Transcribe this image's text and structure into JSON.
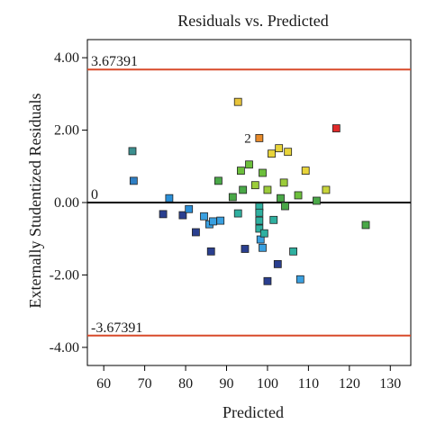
{
  "chart_data": {
    "type": "scatter",
    "title": "Residuals vs. Predicted",
    "xlabel": "Predicted",
    "ylabel": "Externally Studentized Residuals",
    "xlim": [
      56,
      135
    ],
    "ylim": [
      -4.5,
      4.5
    ],
    "xticks": [
      "60",
      "70",
      "80",
      "90",
      "100",
      "110",
      "120",
      "130"
    ],
    "yticks": [
      "-4.00",
      "-2.00",
      "0.00",
      "2.00",
      "4.00"
    ],
    "grid": false,
    "legend": "none",
    "reference_lines": [
      {
        "y": 3.67391,
        "label": "3.67391",
        "color": "#d84a2a"
      },
      {
        "y": 0,
        "label": "0",
        "color": "#000000"
      },
      {
        "y": -3.67391,
        "label": "-3.67391",
        "color": "#d84a2a"
      }
    ],
    "points": [
      {
        "x": 67.0,
        "y": 1.42,
        "color": "#3b8f8f"
      },
      {
        "x": 67.3,
        "y": 0.6,
        "color": "#2f7fc4"
      },
      {
        "x": 74.5,
        "y": -0.32,
        "color": "#2a3f8f"
      },
      {
        "x": 76.0,
        "y": 0.12,
        "color": "#2a8fd8"
      },
      {
        "x": 79.3,
        "y": -0.35,
        "color": "#2a3f8f"
      },
      {
        "x": 80.8,
        "y": -0.18,
        "color": "#2a8fd8"
      },
      {
        "x": 82.5,
        "y": -0.82,
        "color": "#2a3f8f"
      },
      {
        "x": 84.5,
        "y": -0.38,
        "color": "#3aa0e0"
      },
      {
        "x": 85.8,
        "y": -0.6,
        "color": "#3aa0e0"
      },
      {
        "x": 86.2,
        "y": -1.35,
        "color": "#2a3f8f"
      },
      {
        "x": 86.7,
        "y": -0.52,
        "color": "#3aa0e0"
      },
      {
        "x": 88.5,
        "y": -0.5,
        "color": "#3aa0e0"
      },
      {
        "x": 88.0,
        "y": 0.6,
        "color": "#4aa848"
      },
      {
        "x": 91.5,
        "y": 0.15,
        "color": "#4aa848"
      },
      {
        "x": 92.8,
        "y": 2.78,
        "color": "#e8c43a"
      },
      {
        "x": 92.8,
        "y": -0.3,
        "color": "#2fb0a0"
      },
      {
        "x": 93.5,
        "y": 0.88,
        "color": "#6cbf3c"
      },
      {
        "x": 94.0,
        "y": 0.35,
        "color": "#4aa848"
      },
      {
        "x": 94.5,
        "y": -1.28,
        "color": "#2a3f8f"
      },
      {
        "x": 95.5,
        "y": 1.05,
        "color": "#6cbf3c"
      },
      {
        "x": 97.0,
        "y": 0.48,
        "color": "#9ccc3a"
      },
      {
        "x": 98.0,
        "y": 1.78,
        "color": "#e88a2a"
      },
      {
        "x": 98.0,
        "y": -0.12,
        "color": "#2fb0a0"
      },
      {
        "x": 98.0,
        "y": -0.28,
        "color": "#2fb0a0"
      },
      {
        "x": 98.0,
        "y": -0.5,
        "color": "#2fb0a0"
      },
      {
        "x": 98.0,
        "y": -0.72,
        "color": "#2fb0a0"
      },
      {
        "x": 98.3,
        "y": -1.02,
        "color": "#3aa0e0"
      },
      {
        "x": 98.8,
        "y": 0.82,
        "color": "#6cbf3c"
      },
      {
        "x": 98.8,
        "y": -1.25,
        "color": "#3aa0e0"
      },
      {
        "x": 99.2,
        "y": -0.85,
        "color": "#2fb0a0"
      },
      {
        "x": 100.0,
        "y": -2.17,
        "color": "#2a3f8f"
      },
      {
        "x": 100.0,
        "y": 0.35,
        "color": "#9ccc3a"
      },
      {
        "x": 101.0,
        "y": 1.35,
        "color": "#e8d43a"
      },
      {
        "x": 101.5,
        "y": -0.48,
        "color": "#2fb0a0"
      },
      {
        "x": 102.5,
        "y": -1.7,
        "color": "#2a3f8f"
      },
      {
        "x": 102.8,
        "y": 1.5,
        "color": "#e8d43a"
      },
      {
        "x": 103.2,
        "y": 0.12,
        "color": "#4aa848"
      },
      {
        "x": 104.0,
        "y": 0.55,
        "color": "#9ccc3a"
      },
      {
        "x": 104.3,
        "y": -0.1,
        "color": "#4aa848"
      },
      {
        "x": 105.0,
        "y": 1.4,
        "color": "#e8d43a"
      },
      {
        "x": 106.3,
        "y": -1.35,
        "color": "#2fb0a0"
      },
      {
        "x": 107.5,
        "y": 0.2,
        "color": "#6cbf3c"
      },
      {
        "x": 108.0,
        "y": -2.12,
        "color": "#3aa0e0"
      },
      {
        "x": 109.3,
        "y": 0.88,
        "color": "#e8d43a"
      },
      {
        "x": 112.0,
        "y": 0.05,
        "color": "#4aa848"
      },
      {
        "x": 114.3,
        "y": 0.35,
        "color": "#c8d43a"
      },
      {
        "x": 116.8,
        "y": 2.05,
        "color": "#e02a2a"
      },
      {
        "x": 124.0,
        "y": -0.62,
        "color": "#4aa848"
      }
    ],
    "annotations": [
      {
        "text": "2",
        "x": 96.0,
        "y": 1.78
      }
    ]
  }
}
